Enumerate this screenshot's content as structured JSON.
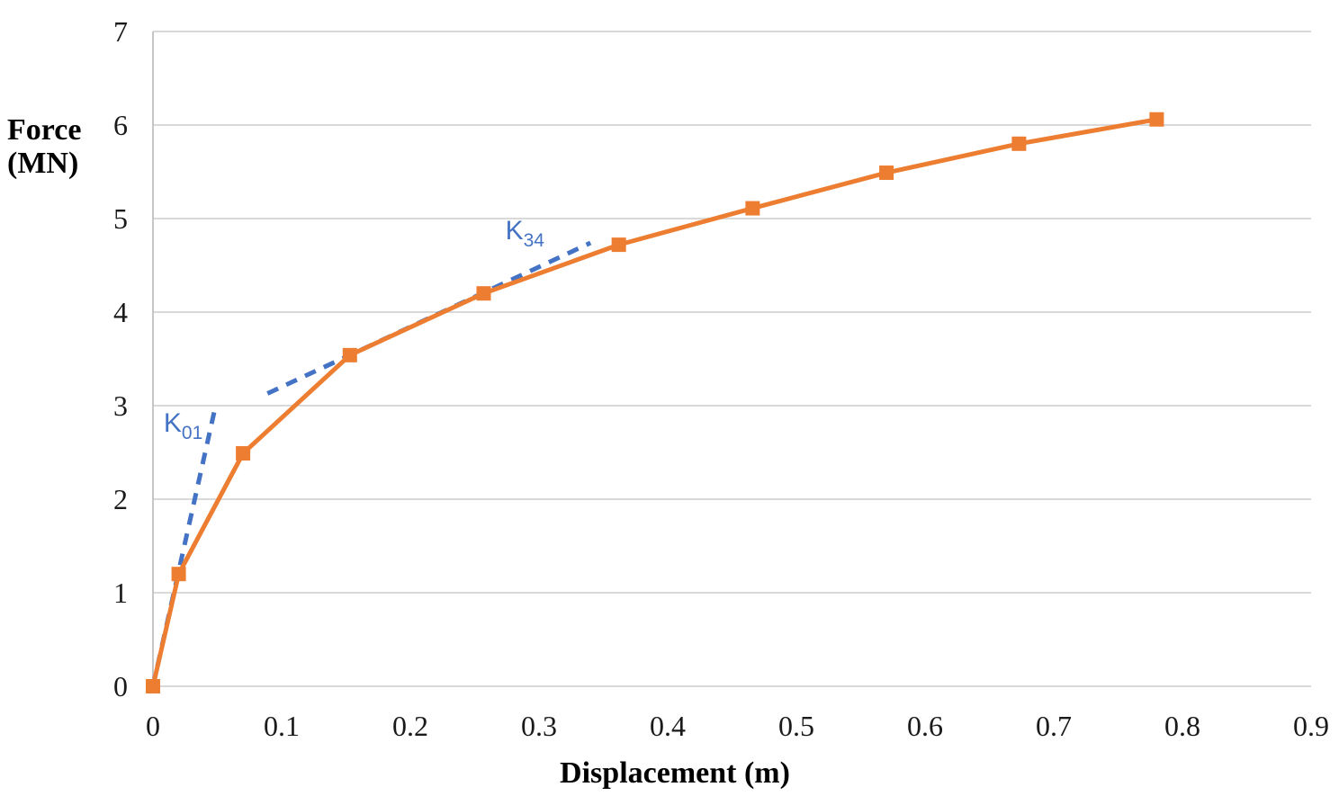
{
  "chart_data": {
    "type": "line",
    "xlabel": "Displacement (m)",
    "ylabel": "Force (MN)",
    "ylabel_line1": "Force",
    "ylabel_line2": "(MN)",
    "xlim": [
      0,
      0.9
    ],
    "ylim": [
      0,
      7
    ],
    "grid": "horizontal-only",
    "legend": "none",
    "x_ticks": [
      {
        "value": 0,
        "label": "0"
      },
      {
        "value": 0.1,
        "label": "0.1"
      },
      {
        "value": 0.2,
        "label": "0.2"
      },
      {
        "value": 0.3,
        "label": "0.3"
      },
      {
        "value": 0.4,
        "label": "0.4"
      },
      {
        "value": 0.5,
        "label": "0.5"
      },
      {
        "value": 0.6,
        "label": "0.6"
      },
      {
        "value": 0.7,
        "label": "0.7"
      },
      {
        "value": 0.8,
        "label": "0.8"
      },
      {
        "value": 0.9,
        "label": "0.9"
      }
    ],
    "y_ticks": [
      {
        "value": 0,
        "label": "0"
      },
      {
        "value": 1,
        "label": "1"
      },
      {
        "value": 2,
        "label": "2"
      },
      {
        "value": 3,
        "label": "3"
      },
      {
        "value": 4,
        "label": "4"
      },
      {
        "value": 5,
        "label": "5"
      },
      {
        "value": 6,
        "label": "6"
      },
      {
        "value": 7,
        "label": "7"
      }
    ],
    "series": [
      {
        "name": "force-displacement-curve",
        "color": "#ED7D31",
        "marker": "square",
        "line_width": 5,
        "x": [
          0,
          0.02,
          0.07,
          0.153,
          0.257,
          0.362,
          0.466,
          0.57,
          0.673,
          0.78
        ],
        "y": [
          0,
          1.2,
          2.49,
          3.54,
          4.2,
          4.72,
          5.11,
          5.49,
          5.8,
          6.06
        ]
      }
    ],
    "annotations": {
      "color": "#4472C4",
      "dash_lines": [
        {
          "name": "K01-secant-line",
          "x1": 0,
          "y1": 0,
          "x2": 0.049,
          "y2": 3.02
        },
        {
          "name": "K34-secant-line",
          "x1": 0.089,
          "y1": 3.13,
          "x2": 0.34,
          "y2": 4.74
        }
      ],
      "labels": [
        {
          "name": "K01-label",
          "text": "K",
          "sub": "01",
          "x": 0.0235,
          "y": 2.72
        },
        {
          "name": "K34-label",
          "text": "K",
          "sub": "34",
          "x": 0.289,
          "y": 4.78
        }
      ]
    },
    "colors": {
      "grid": "#D9D9D9",
      "axis_line": "#C6C6C6",
      "tick_text": "#1a1a1a",
      "series_orange": "#ED7D31",
      "annotation_blue": "#4472C4"
    }
  }
}
